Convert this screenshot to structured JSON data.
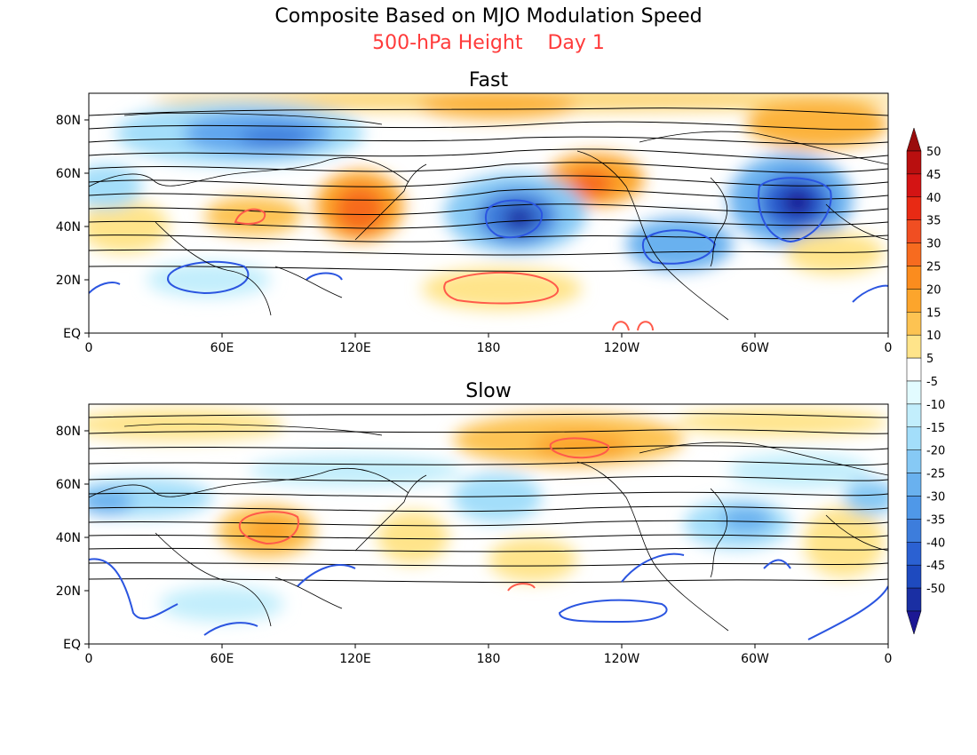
{
  "figure": {
    "title": "Composite Based on MJO Modulation Speed",
    "subtitle_left": "500-hPa Height",
    "subtitle_right": "Day 1",
    "subtitle_color": "#ff3b3b"
  },
  "panels": [
    {
      "title": "Fast"
    },
    {
      "title": "Slow"
    }
  ],
  "axes": {
    "x_ticks": [
      "0",
      "60E",
      "120E",
      "180",
      "120W",
      "60W",
      "0"
    ],
    "y_ticks": [
      "EQ",
      "20N",
      "40N",
      "60N",
      "80N"
    ],
    "lon_range": [
      0,
      360
    ],
    "lat_range": [
      0,
      90
    ]
  },
  "colorbar": {
    "labels": [
      "50",
      "45",
      "40",
      "35",
      "30",
      "25",
      "20",
      "15",
      "10",
      "5",
      "-5",
      "-10",
      "-15",
      "-20",
      "-25",
      "-30",
      "-35",
      "-40",
      "-45",
      "-50"
    ],
    "colors": [
      "#b90f0f",
      "#d41414",
      "#e82a14",
      "#f04e22",
      "#f76b1f",
      "#fb8c1e",
      "#fca52c",
      "#fdc352",
      "#ffe48a",
      "#ffffff",
      "#e2fbff",
      "#c2eefc",
      "#a3defa",
      "#86c9f5",
      "#69b1ef",
      "#4f98e8",
      "#3d7ddc",
      "#2b61d2",
      "#1e4abf",
      "#1a2fa3"
    ],
    "over_color": "#9a0c0c",
    "under_color": "#1c1894"
  }
}
